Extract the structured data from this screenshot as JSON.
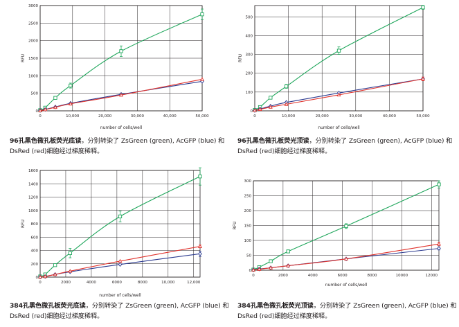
{
  "colors": {
    "green": "#1fa65b",
    "blue": "#2b3a8f",
    "red": "#e0332d",
    "grid": "#231f20"
  },
  "captions": [
    {
      "title": "96孔黑色微孔板荧光底读",
      "text": "，分别转染了 ZsGreen (green), AcGFP (blue) 和 DsRed (red)细胞经过梯度稀释。"
    },
    {
      "title": "96孔黑色微孔板荧光顶读",
      "text": "，分别转染了 ZsGreen (green), AcGFP (blue) 和 DsRed (red)细胞经过梯度稀释。"
    },
    {
      "title": "384孔黑色微孔板荧光底读",
      "text": "，分别转染了 ZsGreen (green), AcGFP (blue) 和 DsRed (red)细胞经过梯度稀释。"
    },
    {
      "title": "384孔黑色微孔板荧光顶读",
      "text": "，分别转染了 ZsGreen (green), AcGFP (blue) 和 DsRed (red)细胞经过梯度稀释。"
    }
  ],
  "chart_data": [
    {
      "type": "line",
      "xlabel": "number of cells/well",
      "ylabel": "RFU",
      "xlim": [
        0,
        50000
      ],
      "ylim": [
        0,
        3000
      ],
      "xticks": [
        "0",
        "10,000",
        "20,000",
        "30,000",
        "40,000",
        "50,000"
      ],
      "xtick_values": [
        0,
        10000,
        20000,
        30000,
        40000,
        50000
      ],
      "yticks": [
        "0",
        "500",
        "1000",
        "1500",
        "2000",
        "2500",
        "3000"
      ],
      "ytick_values": [
        0,
        500,
        1000,
        1500,
        2000,
        2500,
        3000
      ],
      "x": [
        0,
        1560,
        4690,
        9375,
        25000,
        50000
      ],
      "series": [
        {
          "color": "green",
          "marker": "square",
          "values": [
            20,
            90,
            370,
            720,
            1700,
            2750
          ],
          "err": [
            0,
            20,
            30,
            70,
            150,
            150
          ]
        },
        {
          "color": "blue",
          "marker": "diamond",
          "values": [
            10,
            40,
            110,
            215,
            470,
            840
          ],
          "err": [
            0,
            0,
            0,
            0,
            0,
            0
          ]
        },
        {
          "color": "red",
          "marker": "triangle",
          "values": [
            5,
            35,
            100,
            200,
            450,
            900
          ],
          "err": [
            0,
            0,
            0,
            0,
            0,
            0
          ]
        }
      ]
    },
    {
      "type": "line",
      "xlabel": "number of cells/well",
      "ylabel": "RFU",
      "xlim": [
        0,
        50000
      ],
      "ylim": [
        0,
        560
      ],
      "xticks": [
        "0",
        "10,000",
        "20,000",
        "30,000",
        "40,000",
        "50,000"
      ],
      "xtick_values": [
        0,
        10000,
        20000,
        30000,
        40000,
        50000
      ],
      "yticks": [
        "0",
        "100",
        "200",
        "300",
        "400",
        "500"
      ],
      "ytick_values": [
        0,
        100,
        200,
        300,
        400,
        500
      ],
      "x": [
        0,
        1560,
        4690,
        9375,
        25000,
        50000
      ],
      "series": [
        {
          "color": "green",
          "marker": "square",
          "values": [
            5,
            20,
            70,
            130,
            320,
            550
          ],
          "err": [
            0,
            0,
            5,
            10,
            20,
            10
          ]
        },
        {
          "color": "blue",
          "marker": "diamond",
          "values": [
            2,
            10,
            25,
            45,
            95,
            170
          ],
          "err": [
            0,
            0,
            0,
            0,
            0,
            0
          ]
        },
        {
          "color": "red",
          "marker": "triangle",
          "values": [
            2,
            8,
            20,
            35,
            85,
            170
          ],
          "err": [
            0,
            0,
            0,
            0,
            0,
            10
          ]
        }
      ]
    },
    {
      "type": "line",
      "xlabel": "number of cells/well",
      "ylabel": "RFU",
      "xlim": [
        0,
        12500
      ],
      "ylim": [
        0,
        1600
      ],
      "xticks": [
        "0",
        "2000",
        "4000",
        "6000",
        "8000",
        "10,000",
        "12,000"
      ],
      "xtick_values": [
        0,
        2000,
        4000,
        6000,
        8000,
        10000,
        12000
      ],
      "yticks": [
        "0",
        "200",
        "400",
        "600",
        "800",
        "1000",
        "1200",
        "1400",
        "1600"
      ],
      "ytick_values": [
        0,
        200,
        400,
        600,
        800,
        1000,
        1200,
        1400,
        1600
      ],
      "x": [
        0,
        390,
        1170,
        2340,
        6250,
        12500
      ],
      "series": [
        {
          "color": "green",
          "marker": "square",
          "values": [
            10,
            40,
            180,
            360,
            910,
            1510
          ],
          "err": [
            0,
            10,
            20,
            70,
            80,
            130
          ]
        },
        {
          "color": "blue",
          "marker": "diamond",
          "values": [
            2,
            10,
            40,
            80,
            190,
            350
          ],
          "err": [
            0,
            0,
            0,
            0,
            0,
            40
          ]
        },
        {
          "color": "red",
          "marker": "triangle",
          "values": [
            2,
            10,
            40,
            90,
            240,
            460
          ],
          "err": [
            0,
            0,
            0,
            0,
            0,
            20
          ]
        }
      ]
    },
    {
      "type": "line",
      "xlabel": "number of cells/well",
      "ylabel": "RFU",
      "xlim": [
        0,
        12500
      ],
      "ylim": [
        0,
        300
      ],
      "xticks": [
        "0",
        "2000",
        "4000",
        "6000",
        "8000",
        "10000",
        "12000"
      ],
      "xtick_values": [
        0,
        2000,
        4000,
        6000,
        8000,
        10000,
        12000
      ],
      "yticks": [
        "0",
        "50",
        "100",
        "150",
        "200",
        "250",
        "300"
      ],
      "ytick_values": [
        0,
        50,
        100,
        150,
        200,
        250,
        300
      ],
      "x": [
        0,
        390,
        1170,
        2340,
        6250,
        12500
      ],
      "series": [
        {
          "color": "green",
          "marker": "square",
          "values": [
            2,
            10,
            30,
            63,
            148,
            288
          ],
          "err": [
            0,
            0,
            3,
            5,
            8,
            12
          ]
        },
        {
          "color": "blue",
          "marker": "diamond",
          "values": [
            1,
            4,
            8,
            15,
            38,
            73
          ],
          "err": [
            0,
            0,
            0,
            0,
            0,
            5
          ]
        },
        {
          "color": "red",
          "marker": "triangle",
          "values": [
            1,
            3,
            8,
            15,
            38,
            88
          ],
          "err": [
            0,
            0,
            0,
            0,
            0,
            5
          ]
        }
      ]
    }
  ]
}
